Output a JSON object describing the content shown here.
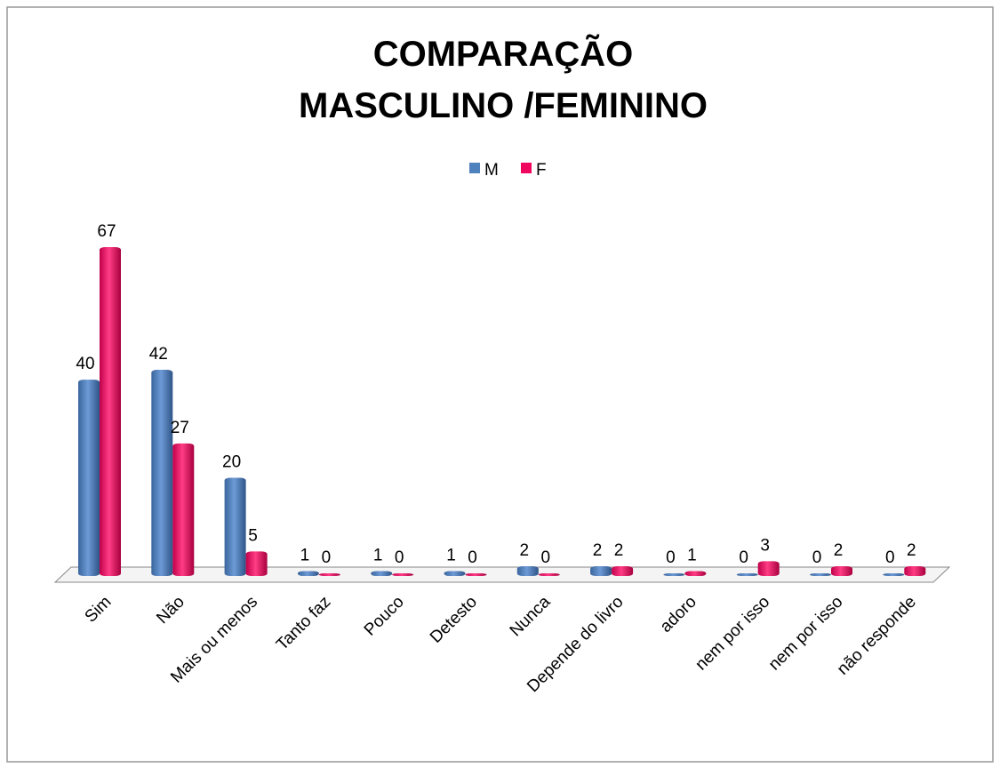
{
  "chart_data": {
    "type": "bar",
    "title": [
      "COMPARAÇÃO",
      "MASCULINO /FEMININO"
    ],
    "categories": [
      "Sim",
      "Não",
      "Mais ou menos",
      "Tanto faz",
      "Pouco",
      "Detesto",
      "Nunca",
      "Depende do livro",
      "adoro",
      "nem por isso",
      "nem por isso",
      "não responde"
    ],
    "series": [
      {
        "name": "M",
        "color": "#4f81bd",
        "values": [
          40,
          42,
          20,
          1,
          1,
          1,
          2,
          2,
          0,
          0,
          0,
          0
        ]
      },
      {
        "name": "F",
        "color": "#f0065e",
        "values": [
          67,
          27,
          5,
          0,
          0,
          0,
          0,
          2,
          1,
          3,
          2,
          2
        ]
      }
    ],
    "legend": "top"
  }
}
